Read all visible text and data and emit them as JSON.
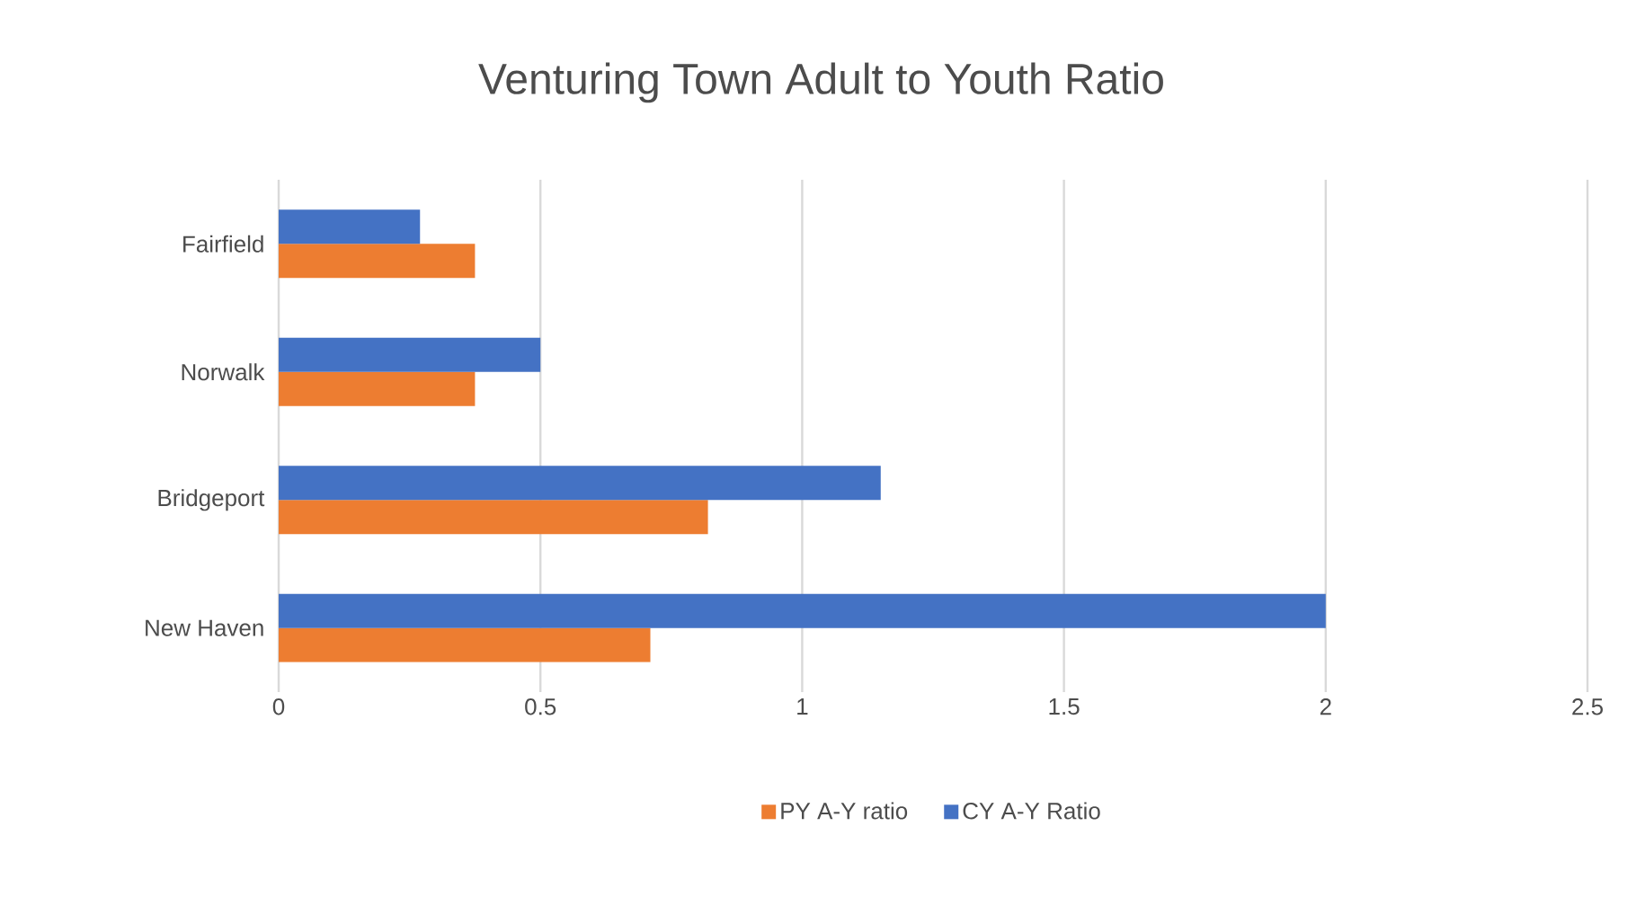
{
  "chart_data": {
    "type": "bar",
    "orientation": "horizontal",
    "title": "Venturing Town Adult to Youth Ratio",
    "categories": [
      "Fairfield",
      "Norwalk",
      "Bridgeport",
      "New Haven"
    ],
    "series": [
      {
        "name": "PY A-Y ratio",
        "color": "#ed7d31",
        "values": [
          0.375,
          0.375,
          0.82,
          0.71
        ]
      },
      {
        "name": "CY A-Y Ratio",
        "color": "#4472c4",
        "values": [
          0.27,
          0.5,
          1.15,
          2
        ]
      }
    ],
    "xlim": [
      0,
      2.5
    ],
    "xticks": [
      0,
      0.5,
      1,
      1.5,
      2,
      2.5
    ],
    "grid": "x",
    "legend": "bottom"
  }
}
